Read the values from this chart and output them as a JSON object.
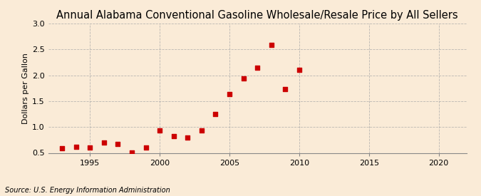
{
  "title": "Annual Alabama Conventional Gasoline Wholesale/Resale Price by All Sellers",
  "ylabel": "Dollars per Gallon",
  "source": "Source: U.S. Energy Information Administration",
  "years": [
    1993,
    1994,
    1995,
    1996,
    1997,
    1998,
    1999,
    2000,
    2001,
    2002,
    2003,
    2004,
    2005,
    2006,
    2007,
    2008,
    2009,
    2010
  ],
  "values": [
    0.59,
    0.62,
    0.6,
    0.7,
    0.67,
    0.51,
    0.61,
    0.94,
    0.83,
    0.79,
    0.94,
    1.25,
    1.63,
    1.94,
    2.15,
    2.58,
    1.73,
    2.11
  ],
  "marker_color": "#cc0000",
  "marker_size": 4,
  "background_color": "#faebd7",
  "ylim": [
    0.5,
    3.0
  ],
  "yticks": [
    0.5,
    1.0,
    1.5,
    2.0,
    2.5,
    3.0
  ],
  "xlim": [
    1992,
    2022
  ],
  "xticks": [
    1995,
    2000,
    2005,
    2010,
    2015,
    2020
  ],
  "title_fontsize": 10.5,
  "label_fontsize": 8,
  "tick_fontsize": 8,
  "source_fontsize": 7,
  "grid_color": "#aaaaaa",
  "grid_linestyle": "--",
  "grid_alpha": 0.8
}
